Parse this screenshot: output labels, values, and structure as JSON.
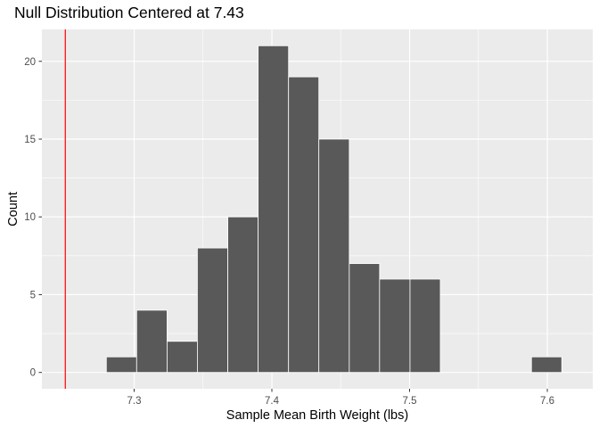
{
  "chart_data": {
    "type": "bar",
    "title": "Null Distribution Centered at 7.43",
    "xlabel": "Sample Mean Birth Weight (lbs)",
    "ylabel": "Count",
    "xlim": [
      7.233,
      7.633
    ],
    "ylim": [
      -1.05,
      22.05
    ],
    "x_ticks": [
      7.3,
      7.4,
      7.5,
      7.6
    ],
    "x_tick_labels": [
      "7.3",
      "7.4",
      "7.5",
      "7.6"
    ],
    "y_ticks": [
      0,
      5,
      10,
      15,
      20
    ],
    "y_tick_labels": [
      "0",
      "5",
      "10",
      "15",
      "20"
    ],
    "bins": [
      {
        "x0": 7.2798,
        "x1": 7.3018,
        "count": 1
      },
      {
        "x0": 7.3018,
        "x1": 7.3239,
        "count": 4
      },
      {
        "x0": 7.3239,
        "x1": 7.3459,
        "count": 2
      },
      {
        "x0": 7.3459,
        "x1": 7.368,
        "count": 8
      },
      {
        "x0": 7.368,
        "x1": 7.39,
        "count": 10
      },
      {
        "x0": 7.39,
        "x1": 7.4121,
        "count": 21
      },
      {
        "x0": 7.4121,
        "x1": 7.4341,
        "count": 19
      },
      {
        "x0": 7.4341,
        "x1": 7.4562,
        "count": 15
      },
      {
        "x0": 7.4562,
        "x1": 7.4782,
        "count": 7
      },
      {
        "x0": 7.4782,
        "x1": 7.5003,
        "count": 6
      },
      {
        "x0": 7.5003,
        "x1": 7.5223,
        "count": 6
      },
      {
        "x0": 7.5223,
        "x1": 7.5444,
        "count": 0
      },
      {
        "x0": 7.5444,
        "x1": 7.5664,
        "count": 0
      },
      {
        "x0": 7.5664,
        "x1": 7.5885,
        "count": 0
      },
      {
        "x0": 7.5885,
        "x1": 7.6105,
        "count": 1
      }
    ],
    "reference_line": {
      "x": 7.25,
      "color": "#ff0000"
    },
    "bar_color": "#595959",
    "bar_outline": "#ffffff",
    "panel_background": "#ebebeb",
    "grid": true,
    "legend": "none"
  }
}
